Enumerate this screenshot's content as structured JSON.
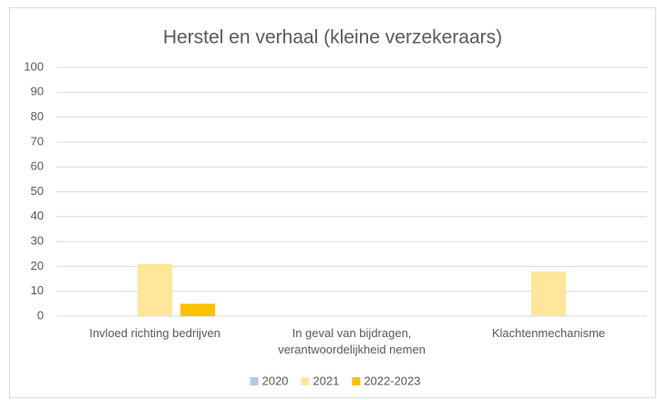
{
  "chart_data": {
    "type": "bar",
    "title": "Herstel en verhaal (kleine verzekeraars)",
    "categories": [
      "Invloed richting bedrijven",
      "In geval van bijdragen, verantwoordelijkheid nemen",
      "Klachtenmechanisme"
    ],
    "series": [
      {
        "name": "2020",
        "color": "#b4c7e7",
        "values": [
          0,
          0,
          0
        ]
      },
      {
        "name": "2021",
        "color": "#ffe699",
        "values": [
          21,
          0,
          18
        ]
      },
      {
        "name": "2022-2023",
        "color": "#ffc000",
        "values": [
          5,
          0,
          0
        ]
      }
    ],
    "ylim": [
      0,
      100
    ],
    "yticks": [
      0,
      10,
      20,
      30,
      40,
      50,
      60,
      70,
      80,
      90,
      100
    ],
    "grid": true,
    "legend": "bottom"
  }
}
